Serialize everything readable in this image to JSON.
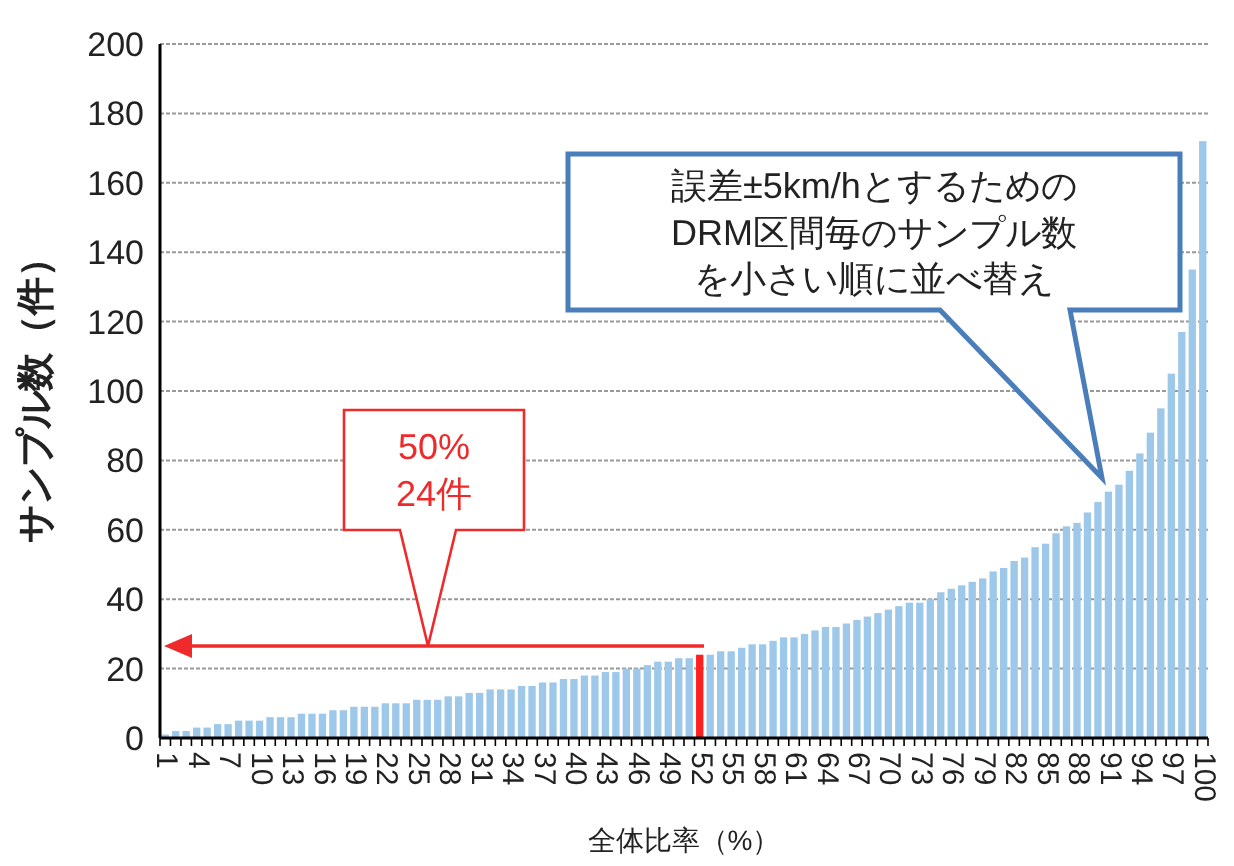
{
  "chart_data": {
    "type": "bar",
    "xlabel": "全体比率（%）",
    "ylabel": "サンプル数（件）",
    "categories": [
      "1",
      null,
      null,
      "4",
      null,
      null,
      "7",
      null,
      null,
      "10",
      null,
      null,
      "13",
      null,
      null,
      "16",
      null,
      null,
      "19",
      null,
      null,
      "22",
      null,
      null,
      "25",
      null,
      null,
      "28",
      null,
      null,
      "31",
      null,
      null,
      "34",
      null,
      null,
      "37",
      null,
      null,
      "40",
      null,
      null,
      "43",
      null,
      null,
      "46",
      null,
      null,
      "49",
      null,
      null,
      "52",
      null,
      null,
      "55",
      null,
      null,
      "58",
      null,
      null,
      "61",
      null,
      null,
      "64",
      null,
      null,
      "67",
      null,
      null,
      "70",
      null,
      null,
      "73",
      null,
      null,
      "76",
      null,
      null,
      "79",
      null,
      null,
      "82",
      null,
      null,
      "85",
      null,
      null,
      "88",
      null,
      null,
      "91",
      null,
      null,
      "94",
      null,
      null,
      "97",
      null,
      null,
      "100"
    ],
    "values": [
      1,
      2,
      2,
      3,
      3,
      4,
      4,
      5,
      5,
      5,
      6,
      6,
      6,
      7,
      7,
      7,
      8,
      8,
      9,
      9,
      9,
      10,
      10,
      10,
      11,
      11,
      11,
      12,
      12,
      13,
      13,
      14,
      14,
      14,
      15,
      15,
      16,
      16,
      17,
      17,
      18,
      18,
      19,
      19,
      20,
      20,
      21,
      22,
      22,
      23,
      23,
      24,
      24,
      25,
      25,
      26,
      27,
      27,
      28,
      29,
      29,
      30,
      31,
      32,
      32,
      33,
      34,
      35,
      36,
      37,
      38,
      39,
      39,
      40,
      42,
      43,
      44,
      45,
      46,
      48,
      49,
      51,
      52,
      55,
      56,
      59,
      61,
      62,
      65,
      68,
      71,
      73,
      77,
      82,
      88,
      95,
      105,
      117,
      135,
      172
    ],
    "colors": [
      "#9dc8ea",
      "#9dc8ea",
      "#9dc8ea",
      "#9dc8ea",
      "#9dc8ea",
      "#9dc8ea",
      "#9dc8ea",
      "#9dc8ea",
      "#9dc8ea",
      "#9dc8ea",
      "#9dc8ea",
      "#9dc8ea",
      "#9dc8ea",
      "#9dc8ea",
      "#9dc8ea",
      "#9dc8ea",
      "#9dc8ea",
      "#9dc8ea",
      "#9dc8ea",
      "#9dc8ea",
      "#9dc8ea",
      "#9dc8ea",
      "#9dc8ea",
      "#9dc8ea",
      "#9dc8ea",
      "#9dc8ea",
      "#9dc8ea",
      "#9dc8ea",
      "#9dc8ea",
      "#9dc8ea",
      "#9dc8ea",
      "#9dc8ea",
      "#9dc8ea",
      "#9dc8ea",
      "#9dc8ea",
      "#9dc8ea",
      "#9dc8ea",
      "#9dc8ea",
      "#9dc8ea",
      "#9dc8ea",
      "#9dc8ea",
      "#9dc8ea",
      "#9dc8ea",
      "#9dc8ea",
      "#9dc8ea",
      "#9dc8ea",
      "#9dc8ea",
      "#9dc8ea",
      "#9dc8ea",
      "#9dc8ea",
      "#9dc8ea",
      "#ff2020",
      "#9dc8ea",
      "#9dc8ea",
      "#9dc8ea",
      "#9dc8ea",
      "#9dc8ea",
      "#9dc8ea",
      "#9dc8ea",
      "#9dc8ea",
      "#9dc8ea",
      "#9dc8ea",
      "#9dc8ea",
      "#9dc8ea",
      "#9dc8ea",
      "#9dc8ea",
      "#9dc8ea",
      "#9dc8ea",
      "#9dc8ea",
      "#9dc8ea",
      "#9dc8ea",
      "#9dc8ea",
      "#9dc8ea",
      "#9dc8ea",
      "#9dc8ea",
      "#9dc8ea",
      "#9dc8ea",
      "#9dc8ea",
      "#9dc8ea",
      "#9dc8ea",
      "#9dc8ea",
      "#9dc8ea",
      "#9dc8ea",
      "#9dc8ea",
      "#9dc8ea",
      "#9dc8ea",
      "#9dc8ea",
      "#9dc8ea",
      "#9dc8ea",
      "#9dc8ea",
      "#9dc8ea",
      "#9dc8ea",
      "#9dc8ea",
      "#9dc8ea",
      "#9dc8ea",
      "#9dc8ea",
      "#9dc8ea",
      "#9dc8ea",
      "#9dc8ea",
      "#9dc8ea"
    ],
    "ylim": [
      0,
      200
    ],
    "yticks": [
      0,
      20,
      40,
      60,
      80,
      100,
      120,
      140,
      160,
      180,
      200
    ],
    "grid": "y",
    "annotations": [
      "50%\n24件",
      "誤差±5km/hとするためのDRM区間毎のサンプル数を小さい順に並べ替え"
    ]
  }
}
